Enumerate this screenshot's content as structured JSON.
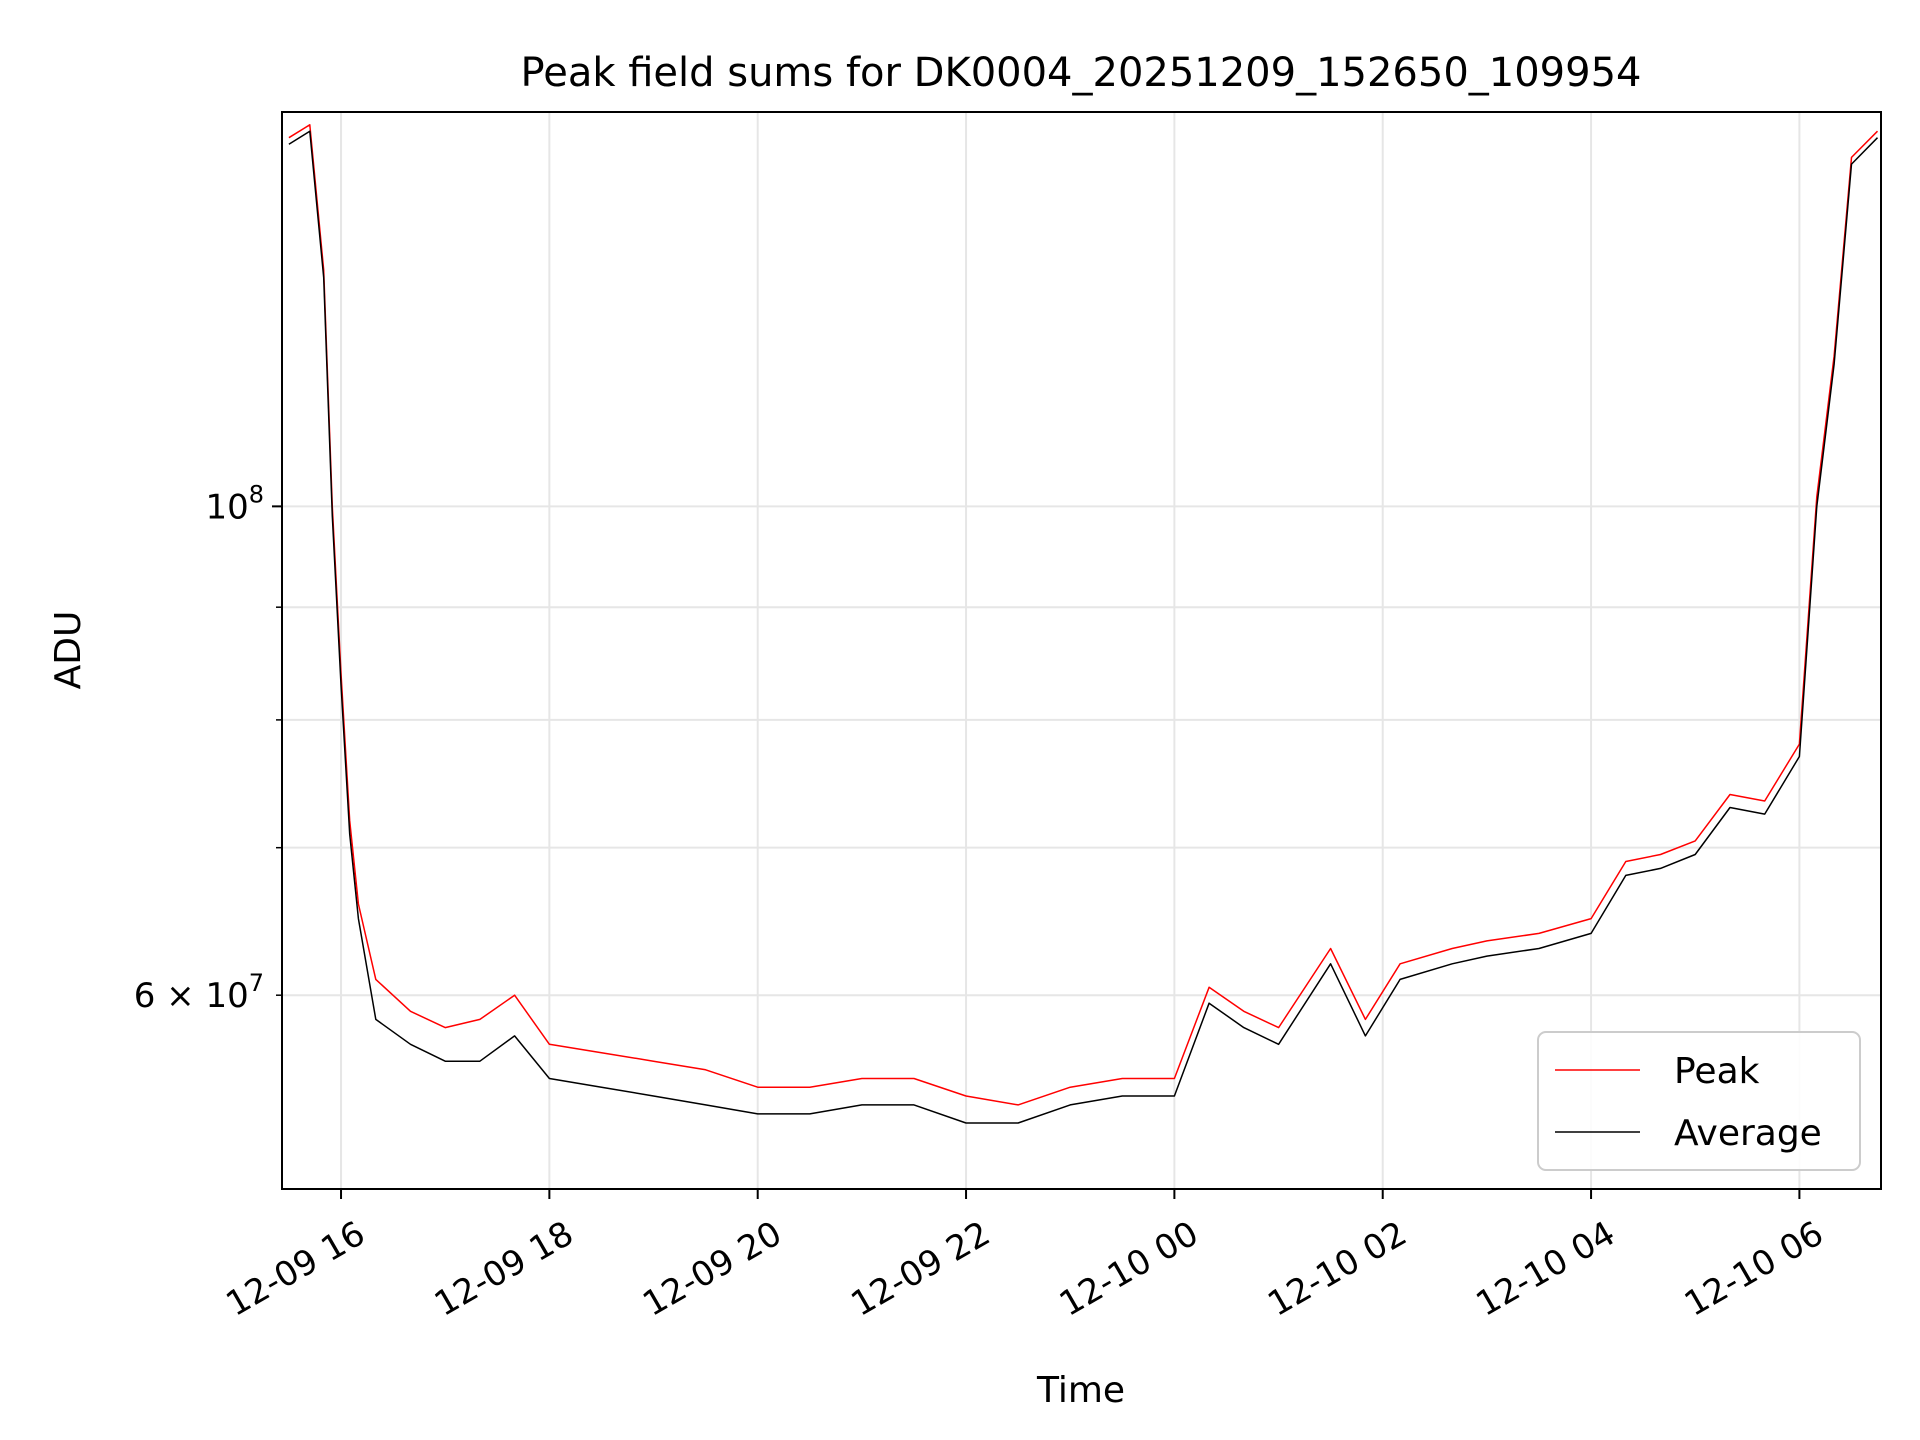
{
  "chart_data": {
    "type": "line",
    "title": "Peak field sums for DK0004_20251209_152650_109954",
    "xlabel": "Time",
    "ylabel": "ADU",
    "y_scale": "log",
    "grid": true,
    "legend_position": "lower-right",
    "xlim": [
      "2025-12-09 15:26",
      "2025-12-10 06:47"
    ],
    "ylim": [
      49000000,
      151000000
    ],
    "x_ticks": [
      {
        "value": "2025-12-09 16:00",
        "label": "12-09 16"
      },
      {
        "value": "2025-12-09 18:00",
        "label": "12-09 18"
      },
      {
        "value": "2025-12-09 20:00",
        "label": "12-09 20"
      },
      {
        "value": "2025-12-09 22:00",
        "label": "12-09 22"
      },
      {
        "value": "2025-12-10 00:00",
        "label": "12-10 00"
      },
      {
        "value": "2025-12-10 02:00",
        "label": "12-10 02"
      },
      {
        "value": "2025-12-10 04:00",
        "label": "12-10 04"
      },
      {
        "value": "2025-12-10 06:00",
        "label": "12-10 06"
      }
    ],
    "y_major_ticks": [
      {
        "value": 100000000,
        "label": "10^8"
      }
    ],
    "y_minor_ticks": [
      {
        "value": 60000000,
        "label": "6 × 10^7"
      },
      {
        "value": 70000000,
        "label": ""
      },
      {
        "value": 80000000,
        "label": ""
      },
      {
        "value": 90000000,
        "label": ""
      }
    ],
    "x": [
      "2025-12-09 15:30",
      "2025-12-09 15:42",
      "2025-12-09 15:50",
      "2025-12-09 15:55",
      "2025-12-09 16:00",
      "2025-12-09 16:05",
      "2025-12-09 16:10",
      "2025-12-09 16:20",
      "2025-12-09 16:40",
      "2025-12-09 17:00",
      "2025-12-09 17:20",
      "2025-12-09 17:40",
      "2025-12-09 18:00",
      "2025-12-09 18:30",
      "2025-12-09 19:00",
      "2025-12-09 19:30",
      "2025-12-09 20:00",
      "2025-12-09 20:30",
      "2025-12-09 21:00",
      "2025-12-09 21:30",
      "2025-12-09 22:00",
      "2025-12-09 22:30",
      "2025-12-09 23:00",
      "2025-12-09 23:30",
      "2025-12-10 00:00",
      "2025-12-10 00:20",
      "2025-12-10 00:40",
      "2025-12-10 01:00",
      "2025-12-10 01:30",
      "2025-12-10 01:50",
      "2025-12-10 02:10",
      "2025-12-10 02:40",
      "2025-12-10 03:00",
      "2025-12-10 03:30",
      "2025-12-10 04:00",
      "2025-12-10 04:20",
      "2025-12-10 04:40",
      "2025-12-10 05:00",
      "2025-12-10 05:20",
      "2025-12-10 05:40",
      "2025-12-10 06:00",
      "2025-12-10 06:10",
      "2025-12-10 06:20",
      "2025-12-10 06:30",
      "2025-12-10 06:45"
    ],
    "series": [
      {
        "name": "Peak",
        "color": "#ff0000",
        "values": [
          147000000,
          149000000,
          128000000,
          100000000,
          84000000,
          72000000,
          66000000,
          61000000,
          59000000,
          58000000,
          58500000,
          60000000,
          57000000,
          56500000,
          56000000,
          55500000,
          54500000,
          54500000,
          55000000,
          55000000,
          54000000,
          53500000,
          54500000,
          55000000,
          55000000,
          60500000,
          59000000,
          58000000,
          63000000,
          58500000,
          62000000,
          63000000,
          63500000,
          64000000,
          65000000,
          69000000,
          69500000,
          70500000,
          74000000,
          73500000,
          78000000,
          101000000,
          117000000,
          144000000,
          148000000
        ]
      },
      {
        "name": "Average",
        "color": "#000000",
        "values": [
          146000000,
          148000000,
          127000000,
          99000000,
          83000000,
          71000000,
          65000000,
          58500000,
          57000000,
          56000000,
          56000000,
          57500000,
          55000000,
          54500000,
          54000000,
          53500000,
          53000000,
          53000000,
          53500000,
          53500000,
          52500000,
          52500000,
          53500000,
          54000000,
          54000000,
          59500000,
          58000000,
          57000000,
          62000000,
          57500000,
          61000000,
          62000000,
          62500000,
          63000000,
          64000000,
          68000000,
          68500000,
          69500000,
          73000000,
          72500000,
          77000000,
          100000000,
          116000000,
          143000000,
          147000000
        ]
      }
    ]
  }
}
